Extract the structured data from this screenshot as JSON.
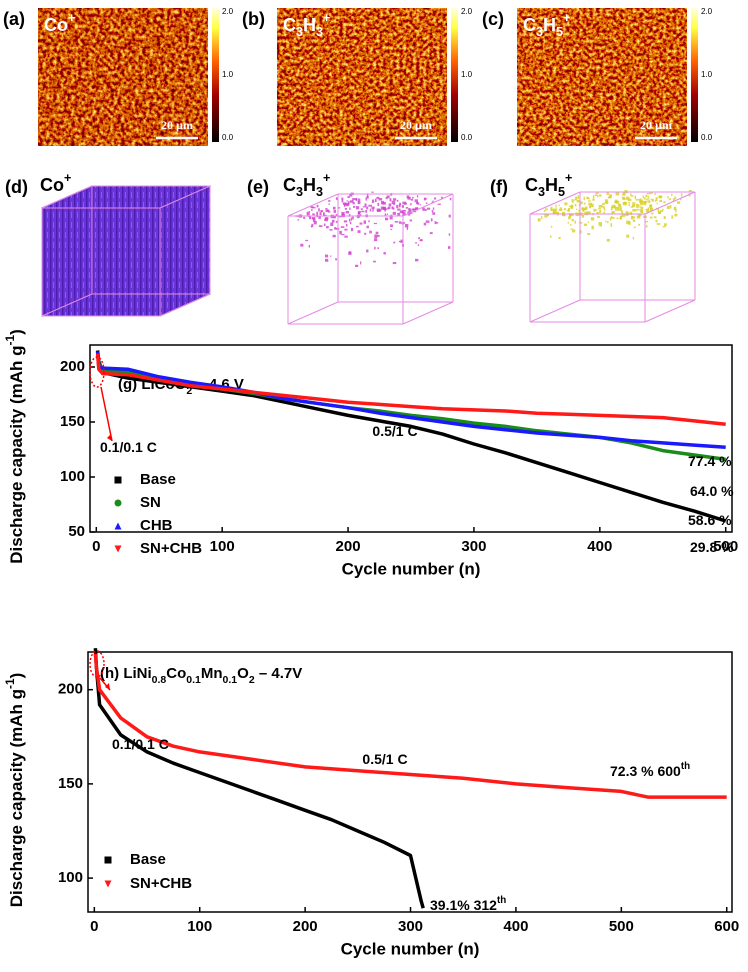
{
  "image_panels": [
    {
      "label": "(a)",
      "species": [
        {
          "t": "Co"
        },
        {
          "sup": "+"
        }
      ],
      "scalebar": "20 µm",
      "colorbar_ticks": [
        "2.0",
        "1.0",
        "0.0"
      ]
    },
    {
      "label": "(b)",
      "species": [
        {
          "t": "C"
        },
        {
          "sub": "3"
        },
        {
          "t": "H"
        },
        {
          "sub": "3"
        },
        {
          "sup": "+"
        }
      ],
      "scalebar": "20 µm",
      "colorbar_ticks": [
        "2.0",
        "1.0",
        "0.0"
      ]
    },
    {
      "label": "(c)",
      "species": [
        {
          "t": "C"
        },
        {
          "sub": "3"
        },
        {
          "t": "H"
        },
        {
          "sub": "5"
        },
        {
          "sup": "+"
        }
      ],
      "scalebar": "20 µm",
      "colorbar_ticks": [
        "2.0",
        "1.0",
        "0.0"
      ]
    }
  ],
  "tof_3d": [
    {
      "label": "(d)",
      "species": [
        {
          "t": "Co"
        },
        {
          "sup": "+"
        }
      ]
    },
    {
      "label": "(e)",
      "species": [
        {
          "t": "C"
        },
        {
          "sub": "3"
        },
        {
          "t": "H"
        },
        {
          "sub": "3"
        },
        {
          "sup": "+"
        }
      ]
    },
    {
      "label": "(f)",
      "species": [
        {
          "t": "C"
        },
        {
          "sub": "3"
        },
        {
          "t": "H"
        },
        {
          "sub": "5"
        },
        {
          "sup": "+"
        }
      ]
    }
  ],
  "chart_data": [
    {
      "type": "line",
      "title": [
        {
          "t": "(g) LiCoO"
        },
        {
          "sub": "2"
        },
        {
          "t": " – 4.6 V"
        }
      ],
      "x_label": "Cycle number (n)",
      "y_label": [
        {
          "t": "Discharge capacity (mAh g"
        },
        {
          "sup": "-1"
        },
        {
          "t": ")"
        }
      ],
      "xlim": [
        -5,
        505
      ],
      "xticks": [
        0,
        100,
        200,
        300,
        400,
        500
      ],
      "ylim": [
        50,
        220
      ],
      "yticks": [
        50,
        100,
        150,
        200
      ],
      "legend": "lower left",
      "annotations": [
        [
          {
            "t": "0.1/0.1 C"
          }
        ],
        [
          {
            "t": "0.5/1 C"
          }
        ],
        [
          {
            "t": "77.4 %"
          }
        ],
        [
          {
            "t": "64.0 %"
          }
        ],
        [
          {
            "t": "58.6 %"
          }
        ],
        [
          {
            "t": "29.8 %"
          }
        ]
      ],
      "series": [
        {
          "name": "Base",
          "color": "#000000",
          "marker": "square",
          "x": [
            1,
            2,
            5,
            25,
            50,
            75,
            100,
            125,
            150,
            175,
            200,
            225,
            250,
            275,
            300,
            325,
            350,
            375,
            400,
            425,
            450,
            475,
            500
          ],
          "values": [
            215,
            205,
            195,
            190,
            186,
            182,
            178,
            174,
            168,
            162,
            156,
            151,
            146,
            139,
            130,
            122,
            113,
            104,
            95,
            86,
            77,
            69,
            60
          ]
        },
        {
          "name": "SN",
          "color": "#1a8c1a",
          "marker": "circle",
          "x": [
            1,
            2,
            5,
            25,
            50,
            75,
            100,
            125,
            150,
            175,
            200,
            225,
            250,
            275,
            300,
            325,
            350,
            375,
            400,
            425,
            450,
            475,
            500
          ],
          "values": [
            214,
            203,
            196,
            195,
            188,
            183,
            180,
            176,
            171,
            167,
            163,
            160,
            156,
            153,
            149,
            146,
            142,
            139,
            136,
            131,
            124,
            120,
            116
          ]
        },
        {
          "name": "CHB",
          "color": "#1a1aff",
          "marker": "triangle",
          "x": [
            1,
            2,
            5,
            25,
            50,
            75,
            100,
            125,
            150,
            175,
            200,
            225,
            250,
            275,
            300,
            325,
            350,
            375,
            400,
            425,
            450,
            475,
            500
          ],
          "values": [
            214,
            200,
            199,
            198,
            191,
            186,
            182,
            177,
            171,
            167,
            163,
            158,
            154,
            150,
            146,
            143,
            140,
            138,
            136,
            133,
            131,
            129,
            127
          ]
        },
        {
          "name": "SN+CHB",
          "color": "#ff1a1a",
          "marker": "down-triangle",
          "x": [
            1,
            2,
            5,
            25,
            50,
            75,
            100,
            125,
            150,
            175,
            200,
            225,
            250,
            275,
            300,
            325,
            350,
            375,
            400,
            425,
            450,
            475,
            500
          ],
          "values": [
            212,
            198,
            194,
            193,
            188,
            183,
            180,
            177,
            174,
            171,
            168,
            166,
            164,
            162,
            161,
            160,
            158,
            157,
            156,
            155,
            154,
            151,
            148
          ]
        }
      ]
    },
    {
      "type": "line",
      "title": [
        {
          "t": "(h) LiNi"
        },
        {
          "sub": "0.8"
        },
        {
          "t": "Co"
        },
        {
          "sub": "0.1"
        },
        {
          "t": "Mn"
        },
        {
          "sub": "0.1"
        },
        {
          "t": "O"
        },
        {
          "sub": "2"
        },
        {
          "t": " – 4.7V"
        }
      ],
      "x_label": "Cycle number (n)",
      "y_label": [
        {
          "t": "Discharge capacity (mAh g"
        },
        {
          "sup": "-1"
        },
        {
          "t": ")"
        }
      ],
      "xlim": [
        -6,
        605
      ],
      "xticks": [
        0,
        100,
        200,
        300,
        400,
        500,
        600
      ],
      "ylim": [
        82,
        220
      ],
      "yticks": [
        100,
        150,
        200
      ],
      "legend": "lower left",
      "annotations": [
        [
          {
            "t": "0.1/0.1 C"
          }
        ],
        [
          {
            "t": "0.5/1 C"
          }
        ],
        [
          {
            "t": "72.3 % 600"
          },
          {
            "sup": "th"
          }
        ],
        [
          {
            "t": "39.1% 312"
          },
          {
            "sup": "th"
          }
        ]
      ],
      "series": [
        {
          "name": "Base",
          "color": "#000000",
          "marker": "square",
          "x": [
            1,
            2,
            5,
            25,
            50,
            75,
            100,
            125,
            150,
            175,
            200,
            225,
            250,
            275,
            300,
            305,
            310,
            312
          ],
          "values": [
            222,
            212,
            192,
            176,
            167,
            161,
            156,
            151,
            146,
            141,
            136,
            131,
            125,
            119,
            112,
            100,
            88,
            84
          ]
        },
        {
          "name": "SN+CHB",
          "color": "#ff1a1a",
          "marker": "down-triangle",
          "x": [
            1,
            2,
            5,
            25,
            50,
            75,
            100,
            150,
            200,
            250,
            300,
            350,
            400,
            450,
            500,
            525,
            550,
            600
          ],
          "values": [
            219,
            212,
            200,
            185,
            175,
            170,
            167,
            163,
            159,
            157,
            155,
            153,
            150,
            148,
            146,
            143,
            143,
            143
          ]
        }
      ]
    }
  ]
}
